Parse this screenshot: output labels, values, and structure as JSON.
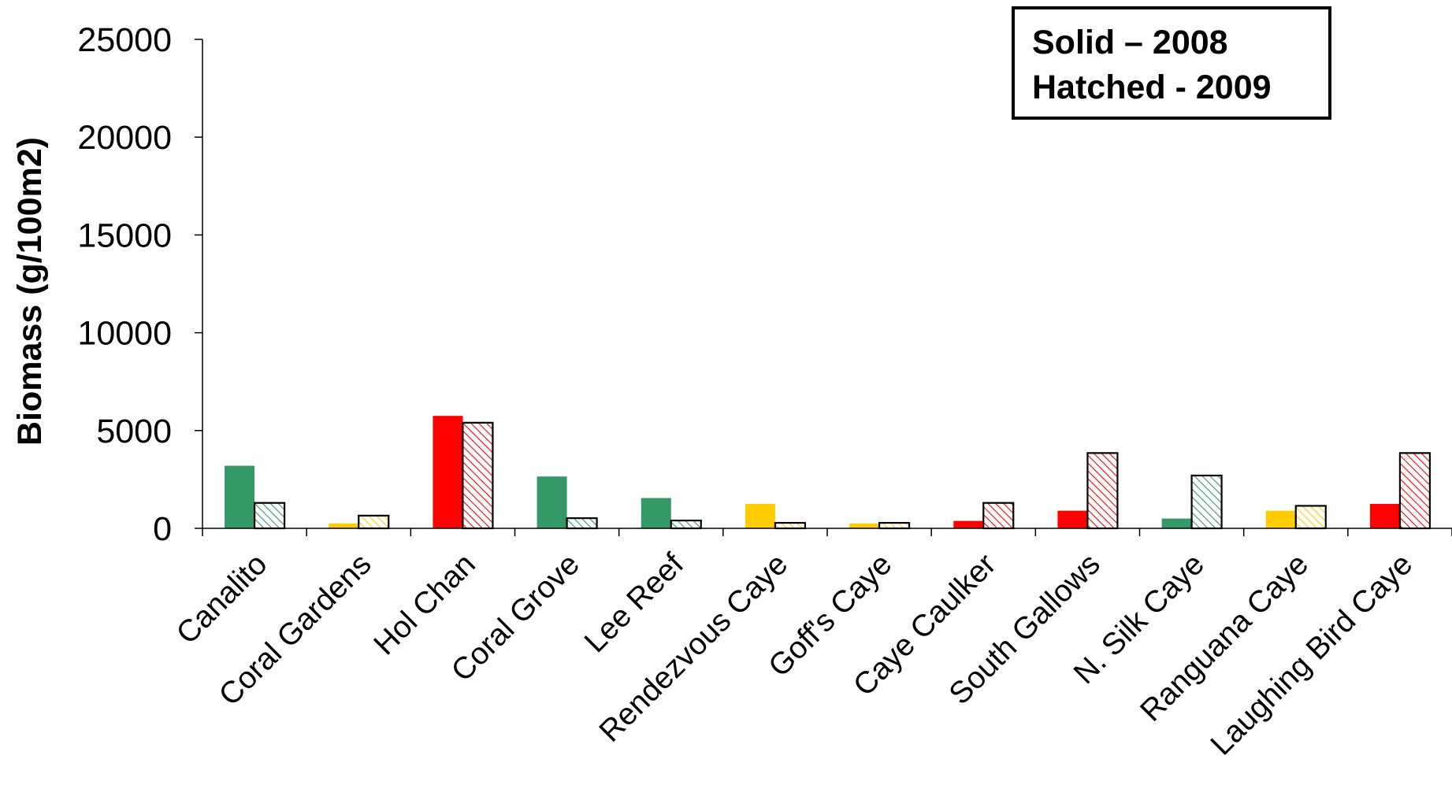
{
  "chart_data": {
    "type": "bar",
    "title": "",
    "xlabel": "",
    "ylabel": "Biomass (g/100m2)",
    "ylim": [
      0,
      25000
    ],
    "yticks": [
      0,
      5000,
      10000,
      15000,
      20000,
      25000
    ],
    "categories": [
      "Canalito",
      "Coral Gardens",
      "Hol Chan",
      "Coral Grove",
      "Lee Reef",
      "Rendezvous Caye",
      "Goff's Caye",
      "Caye Caulker",
      "South Gallows",
      "N. Silk Caye",
      "Ranguana Caye",
      "Laughing Bird Caye"
    ],
    "series": [
      {
        "values": [
          3200,
          250,
          5750,
          2650,
          1550,
          1250,
          250,
          380,
          900,
          500,
          900,
          1250
        ],
        "style": "solid"
      },
      {
        "values": [
          1300,
          650,
          5400,
          520,
          400,
          280,
          280,
          1300,
          3850,
          2700,
          1150,
          3850
        ],
        "style": "hatched"
      }
    ],
    "bar_colors": [
      "#339966",
      "#ffcc00",
      "#ff0000",
      "#339966",
      "#339966",
      "#ffcc00",
      "#ffcc00",
      "#ff0000",
      "#ff0000",
      "#339966",
      "#ffcc00",
      "#ff0000"
    ],
    "annotation": {
      "line1": "Solid – 2008",
      "line2": "Hatched - 2009"
    },
    "grid": false
  }
}
